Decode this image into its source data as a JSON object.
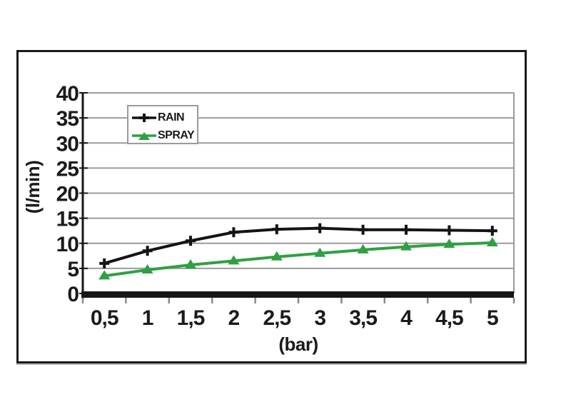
{
  "page": {
    "background": "#ffffff",
    "frame_border_color": "#1a1a1a"
  },
  "chart_data": {
    "type": "line",
    "xlabel": "(bar)",
    "ylabel": "(l/min)",
    "x_values": [
      0.5,
      1,
      1.5,
      2,
      2.5,
      3,
      3.5,
      4,
      4.5,
      5
    ],
    "x_tick_labels": [
      "0,5",
      "1",
      "1,5",
      "2",
      "2,5",
      "3",
      "3,5",
      "4",
      "4,5",
      "5"
    ],
    "ylim": [
      0,
      40
    ],
    "y_tick_step": 5,
    "y_tick_labels": [
      "0",
      "5",
      "10",
      "15",
      "20",
      "25",
      "30",
      "35",
      "40"
    ],
    "grid": "horizontal",
    "legend_position": "top-left-inside",
    "series": [
      {
        "name": "RAIN",
        "color": "#141414",
        "marker": "plus",
        "values": [
          6,
          8.5,
          10.5,
          12.2,
          12.8,
          13,
          12.7,
          12.7,
          12.6,
          12.5
        ]
      },
      {
        "name": "SPRAY",
        "color": "#2FA043",
        "marker": "triangle-up",
        "values": [
          3.5,
          4.7,
          5.7,
          6.5,
          7.3,
          8,
          8.7,
          9.3,
          9.8,
          10.1
        ]
      }
    ],
    "colors": {
      "gridline": "#9b9b9b",
      "axis": "#161616",
      "tick": "#8a8a8a",
      "text": "#1b1b1b",
      "plot_background": "#ffffff",
      "legend_border": "#9b9b9b"
    }
  }
}
